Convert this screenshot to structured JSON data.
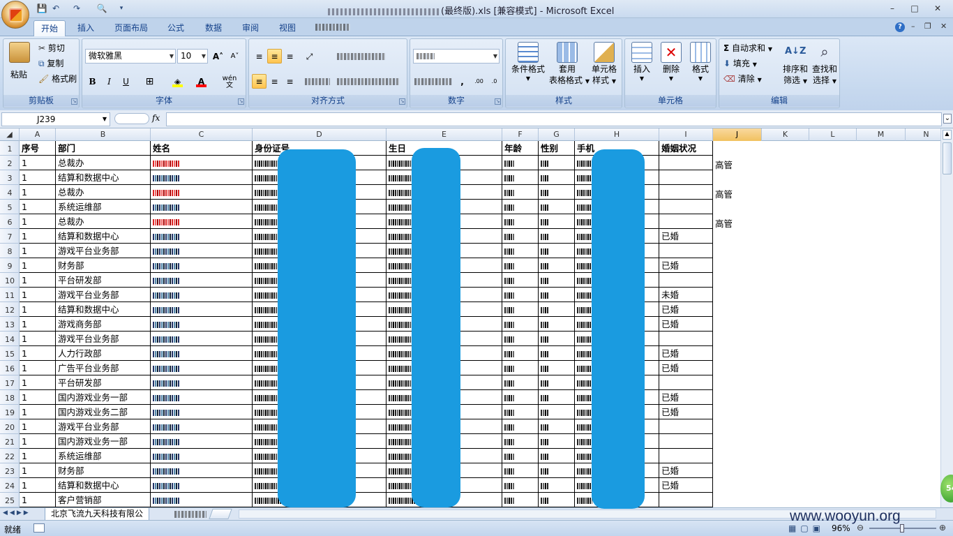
{
  "window": {
    "title_suffix": "(最终版).xls [兼容模式] - Microsoft Excel",
    "minimize": "–",
    "maximize": "□",
    "close": "✕"
  },
  "tabs": [
    "开始",
    "插入",
    "页面布局",
    "公式",
    "数据",
    "审阅",
    "视图"
  ],
  "ribbon": {
    "clipboard": {
      "label": "剪贴板",
      "paste": "粘贴",
      "cut": "剪切",
      "copy": "复制",
      "format_painter": "格式刷"
    },
    "font": {
      "label": "字体",
      "name": "微软雅黑",
      "size": "10",
      "grow": "A˄",
      "shrink": "A˅",
      "bold": "B",
      "italic": "I",
      "underline": "U",
      "fill_color": "#ffff00",
      "font_color": "#ff0000",
      "phonetic": "wén 文"
    },
    "alignment": {
      "label": "对齐方式"
    },
    "number": {
      "label": "数字",
      "comma": ","
    },
    "styles": {
      "label": "样式",
      "conditional": "条件格式",
      "table_line1": "套用",
      "table_line2": "表格格式",
      "cell_line1": "单元格",
      "cell_line2": "样式"
    },
    "cells": {
      "label": "单元格",
      "insert": "插入",
      "delete": "删除",
      "format": "格式"
    },
    "editing": {
      "label": "编辑",
      "autosum": "自动求和",
      "fill": "填充",
      "clear": "清除",
      "sort_line1": "排序和",
      "sort_line2": "筛选",
      "find_line1": "查找和",
      "find_line2": "选择"
    }
  },
  "formula_bar": {
    "name_box": "J239",
    "fx": "fx",
    "value": ""
  },
  "columns": [
    "A",
    "B",
    "C",
    "D",
    "E",
    "F",
    "G",
    "H",
    "I",
    "J",
    "K",
    "L",
    "M",
    "N"
  ],
  "selected_column": "J",
  "header_row": {
    "A": "序号",
    "B": "部门",
    "C": "姓名",
    "D": "身份证号",
    "E": "生日",
    "F": "年龄",
    "G": "性别",
    "H": "手机",
    "I": "婚姻状况"
  },
  "rows": [
    {
      "n": "2",
      "A": "1",
      "B": "总裁办",
      "I": "",
      "J": "高管",
      "red": true
    },
    {
      "n": "3",
      "A": "1",
      "B": "结算和数据中心",
      "I": "",
      "J": ""
    },
    {
      "n": "4",
      "A": "1",
      "B": "总裁办",
      "I": "",
      "J": "高管",
      "red": true
    },
    {
      "n": "5",
      "A": "1",
      "B": "系统运维部",
      "I": "",
      "J": ""
    },
    {
      "n": "6",
      "A": "1",
      "B": "总裁办",
      "I": "",
      "J": "高管",
      "red": true
    },
    {
      "n": "7",
      "A": "1",
      "B": "结算和数据中心",
      "I": "已婚",
      "J": ""
    },
    {
      "n": "8",
      "A": "1",
      "B": "游戏平台业务部",
      "I": "",
      "J": ""
    },
    {
      "n": "9",
      "A": "1",
      "B": "财务部",
      "I": "已婚",
      "J": ""
    },
    {
      "n": "10",
      "A": "1",
      "B": "平台研发部",
      "I": "",
      "J": ""
    },
    {
      "n": "11",
      "A": "1",
      "B": "游戏平台业务部",
      "I": "未婚",
      "J": ""
    },
    {
      "n": "12",
      "A": "1",
      "B": "结算和数据中心",
      "I": "已婚",
      "J": ""
    },
    {
      "n": "13",
      "A": "1",
      "B": "游戏商务部",
      "I": "已婚",
      "J": ""
    },
    {
      "n": "14",
      "A": "1",
      "B": "游戏平台业务部",
      "I": "",
      "J": ""
    },
    {
      "n": "15",
      "A": "1",
      "B": "人力行政部",
      "I": "已婚",
      "J": ""
    },
    {
      "n": "16",
      "A": "1",
      "B": "广告平台业务部",
      "I": "已婚",
      "J": ""
    },
    {
      "n": "17",
      "A": "1",
      "B": "平台研发部",
      "I": "",
      "J": ""
    },
    {
      "n": "18",
      "A": "1",
      "B": "国内游戏业务一部",
      "I": "已婚",
      "J": ""
    },
    {
      "n": "19",
      "A": "1",
      "B": "国内游戏业务二部",
      "I": "已婚",
      "J": ""
    },
    {
      "n": "20",
      "A": "1",
      "B": "游戏平台业务部",
      "I": "",
      "J": ""
    },
    {
      "n": "21",
      "A": "1",
      "B": "国内游戏业务一部",
      "I": "",
      "J": ""
    },
    {
      "n": "22",
      "A": "1",
      "B": "系统运维部",
      "I": "",
      "J": ""
    },
    {
      "n": "23",
      "A": "1",
      "B": "财务部",
      "I": "已婚",
      "J": ""
    },
    {
      "n": "24",
      "A": "1",
      "B": "结算和数据中心",
      "I": "已婚",
      "J": ""
    },
    {
      "n": "25",
      "A": "1",
      "B": "客户营销部",
      "I": "",
      "J": ""
    }
  ],
  "sheet_tab": "北京飞流九天科技有限公",
  "status": {
    "ready": "就绪",
    "zoom": "96%"
  },
  "watermark": "www.wooyun.org",
  "badge": "54",
  "colors": {
    "redaction": "#1a9be0",
    "selected_col": "#f1c15f",
    "ribbon": "#c7d9ef"
  }
}
